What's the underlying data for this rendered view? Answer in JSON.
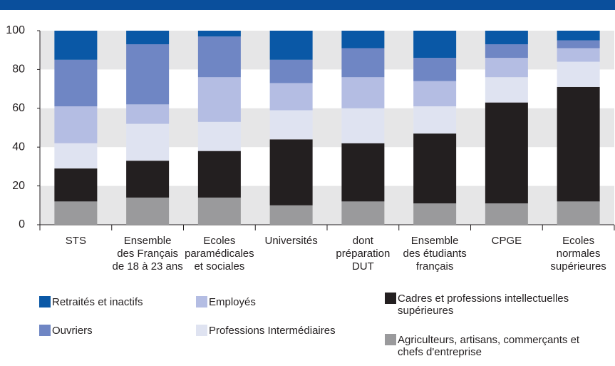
{
  "chart_data": {
    "type": "stacked-bar",
    "categories": [
      [
        "STS"
      ],
      [
        "Ensemble",
        "des Français",
        "de 18 à 23 ans"
      ],
      [
        "Ecoles",
        "paramédicales",
        "et sociales"
      ],
      [
        "Universités"
      ],
      [
        "dont",
        "préparation",
        "DUT"
      ],
      [
        "Ensemble",
        "des étudiants",
        "français"
      ],
      [
        "CPGE"
      ],
      [
        "Ecoles",
        "normales",
        "supérieures"
      ]
    ],
    "series": [
      {
        "name": "Agriculteurs, artisans, commerçants et chefs d'entreprise",
        "color": "#9a9a9c",
        "values": [
          12,
          14,
          14,
          10,
          12,
          11,
          11,
          12
        ]
      },
      {
        "name": "Cadres et professions intellectuelles supérieures",
        "color": "#231f20",
        "values": [
          17,
          19,
          24,
          34,
          30,
          36,
          52,
          59
        ]
      },
      {
        "name": "Professions Intermédiaires",
        "color": "#dfe3f1",
        "values": [
          13,
          19,
          15,
          15,
          18,
          14,
          13,
          13
        ]
      },
      {
        "name": "Employés",
        "color": "#b4bde3",
        "values": [
          19,
          10,
          23,
          14,
          16,
          13,
          10,
          7
        ]
      },
      {
        "name": "Ouvriers",
        "color": "#6f86c4",
        "values": [
          24,
          31,
          21,
          12,
          15,
          12,
          7,
          4
        ]
      },
      {
        "name": "Retraités et inactifs",
        "color": "#0a58a6",
        "values": [
          15,
          7,
          3,
          15,
          9,
          14,
          7,
          5
        ]
      }
    ],
    "ylim": [
      0,
      100
    ],
    "yticks": [
      0,
      20,
      40,
      60,
      80,
      100
    ],
    "grid": true
  }
}
